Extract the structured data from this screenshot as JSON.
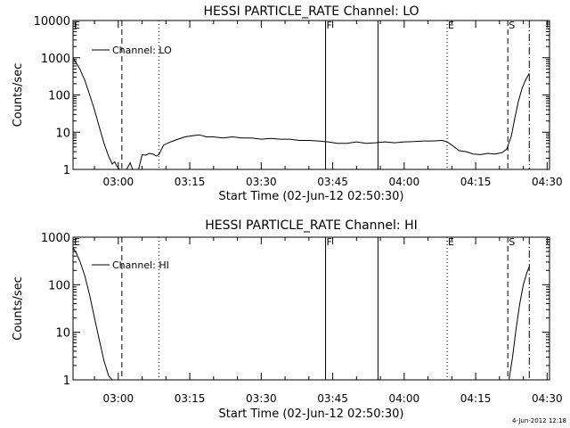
{
  "footer": {
    "date_stamp": "4-Jun-2012 12:18"
  },
  "chart_data": [
    {
      "type": "line",
      "title": "HESSI PARTICLE_RATE Channel: LO",
      "xlabel": "Start Time (02-Jun-12 02:50:30)",
      "ylabel": "Counts/sec",
      "y_scale": "log",
      "ylim": [
        1,
        10000
      ],
      "yticks": [
        "1",
        "10",
        "100",
        "1000",
        "10000"
      ],
      "xticks": [
        "03:00",
        "03:15",
        "03:30",
        "03:45",
        "04:00",
        "04:15",
        "04:30"
      ],
      "xlim": [
        "02:50:30",
        "04:30:30"
      ],
      "legend": {
        "label": "Channel: LO",
        "position": "top-left"
      },
      "grid": false,
      "markers": [
        {
          "label": "E",
          "time": "02:50:30",
          "style": "none"
        },
        {
          "label": "",
          "time": "03:00:45",
          "style": "dashed"
        },
        {
          "label": "",
          "time": "03:08:30",
          "style": "dotted"
        },
        {
          "label": "F",
          "time": "03:43:30",
          "style": "solid"
        },
        {
          "label": "",
          "time": "03:54:30",
          "style": "solid"
        },
        {
          "label": "E",
          "time": "04:09:00",
          "style": "dotted"
        },
        {
          "label": "S",
          "time": "04:21:45",
          "style": "dashed"
        },
        {
          "label": "",
          "time": "04:26:15",
          "style": "dashdot"
        }
      ],
      "series": [
        {
          "name": "Channel: LO",
          "segments": [
            {
              "x": [
                "02:50:30",
                "02:51:15",
                "02:52:00",
                "02:53:00",
                "02:54:00",
                "02:55:00",
                "02:56:00",
                "02:57:00",
                "02:58:00",
                "02:58:45",
                "02:59:15",
                "02:59:45",
                "03:00:15"
              ],
              "y": [
                1000,
                700,
                480,
                240,
                100,
                40,
                14,
                5,
                2.2,
                1.4,
                1.6,
                1.2,
                1
              ]
            },
            {
              "x": [
                "03:01:45",
                "03:02:30",
                "03:03:00"
              ],
              "y": [
                1,
                1.5,
                1
              ]
            },
            {
              "x": [
                "03:04:15",
                "03:05:00",
                "03:05:45",
                "03:06:30",
                "03:07:15",
                "03:08:00",
                "03:08:30",
                "03:09:30",
                "03:11:00",
                "03:12:30",
                "03:14:00",
                "03:15:30",
                "03:17:00",
                "03:18:30",
                "03:20:00",
                "03:22:00",
                "03:24:00",
                "03:26:00",
                "03:28:00",
                "03:30:00",
                "03:32:00",
                "03:34:00",
                "03:36:00",
                "03:38:00",
                "03:40:00",
                "03:42:00",
                "03:44:00",
                "03:46:00",
                "03:48:00",
                "03:50:00",
                "03:52:00",
                "03:54:00",
                "03:56:00",
                "03:58:00",
                "04:00:00",
                "04:02:00",
                "04:04:00",
                "04:06:00",
                "04:08:00",
                "04:09:00",
                "04:10:00",
                "04:11:30",
                "04:13:00",
                "04:14:30",
                "04:16:00",
                "04:17:30",
                "04:19:00",
                "04:20:30",
                "04:21:30",
                "04:22:30",
                "04:23:15",
                "04:24:00",
                "04:24:45",
                "04:25:30",
                "04:26:15"
              ],
              "y": [
                1,
                2.5,
                2.4,
                2.7,
                2.6,
                2.3,
                2.5,
                4.5,
                5.5,
                6.5,
                7.5,
                8,
                8.5,
                7.5,
                7.5,
                7,
                7.5,
                7,
                7,
                6.5,
                6.8,
                6.5,
                6.5,
                6,
                6,
                5.8,
                5.5,
                5,
                5,
                5.5,
                5,
                5.2,
                5.5,
                5.2,
                5.5,
                5.6,
                5.8,
                5.8,
                6,
                5.5,
                4.5,
                3.2,
                3,
                2.6,
                2.5,
                2.7,
                2.6,
                2.8,
                3.5,
                8,
                25,
                70,
                150,
                260,
                380
              ]
            }
          ]
        }
      ]
    },
    {
      "type": "line",
      "title": "HESSI PARTICLE_RATE Channel: HI",
      "xlabel": "Start Time (02-Jun-12 02:50:30)",
      "ylabel": "Counts/sec",
      "y_scale": "log",
      "ylim": [
        1,
        1000
      ],
      "yticks": [
        "1",
        "10",
        "100",
        "1000"
      ],
      "xticks": [
        "03:00",
        "03:15",
        "03:30",
        "03:45",
        "04:00",
        "04:15",
        "04:30"
      ],
      "xlim": [
        "02:50:30",
        "04:30:30"
      ],
      "legend": {
        "label": "Channel: HI",
        "position": "top-left"
      },
      "grid": false,
      "markers": [
        {
          "label": "E",
          "time": "02:50:30",
          "style": "none"
        },
        {
          "label": "",
          "time": "03:00:45",
          "style": "dashed"
        },
        {
          "label": "",
          "time": "03:08:30",
          "style": "dotted"
        },
        {
          "label": "F",
          "time": "03:43:30",
          "style": "solid"
        },
        {
          "label": "",
          "time": "03:54:30",
          "style": "solid"
        },
        {
          "label": "E",
          "time": "04:09:00",
          "style": "dotted"
        },
        {
          "label": "S",
          "time": "04:21:45",
          "style": "dashed"
        },
        {
          "label": "",
          "time": "04:26:15",
          "style": "dashdot"
        }
      ],
      "series": [
        {
          "name": "Channel: HI",
          "segments": [
            {
              "x": [
                "02:50:30",
                "02:51:15",
                "02:52:00",
                "02:53:00",
                "02:54:00",
                "02:55:00",
                "02:56:00",
                "02:57:00",
                "02:58:00",
                "02:58:45"
              ],
              "y": [
                600,
                450,
                300,
                150,
                60,
                20,
                7,
                2.5,
                1.2,
                1
              ]
            },
            {
              "x": [
                "04:22:00",
                "04:22:45",
                "04:23:30",
                "04:24:15",
                "04:25:00",
                "04:25:45",
                "04:26:15"
              ],
              "y": [
                1,
                3,
                12,
                40,
                100,
                180,
                240
              ]
            }
          ]
        }
      ]
    }
  ]
}
